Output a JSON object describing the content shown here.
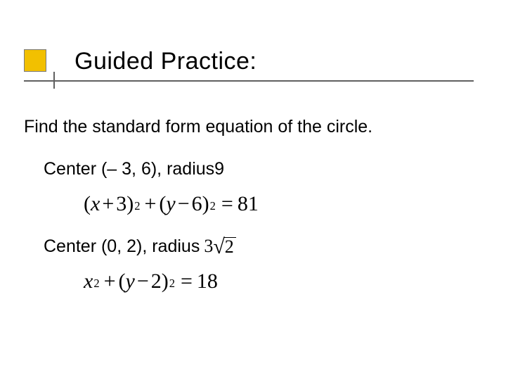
{
  "colors": {
    "accent_fill": "#f2c000",
    "accent_border": "#7a7a7a",
    "underline": "#606060",
    "text": "#000000",
    "background": "#ffffff"
  },
  "title": "Guided Practice:",
  "task": "Find the standard form equation of the circle.",
  "problems": [
    {
      "label_prefix": "Center (– 3, 6), radius ",
      "radius_text": "9",
      "equation": {
        "lhs1_open": "(",
        "lhs1_var": "x",
        "lhs1_op": "+",
        "lhs1_num": "3",
        "lhs1_close": ")",
        "lhs1_exp": "2",
        "plus": "+",
        "lhs2_open": "(",
        "lhs2_var": "y",
        "lhs2_op": "−",
        "lhs2_num": "6",
        "lhs2_close": ")",
        "lhs2_exp": "2",
        "eq": "=",
        "rhs": "81"
      }
    },
    {
      "label_prefix": "Center (0, 2), radius",
      "radius_radical": {
        "coef": "3",
        "radicand": "2"
      },
      "equation": {
        "lhs1_var": "x",
        "lhs1_exp": "2",
        "plus": "+",
        "lhs2_open": "(",
        "lhs2_var": "y",
        "lhs2_op": "−",
        "lhs2_num": "2",
        "lhs2_close": ")",
        "lhs2_exp": "2",
        "eq": "=",
        "rhs": "18"
      }
    }
  ]
}
